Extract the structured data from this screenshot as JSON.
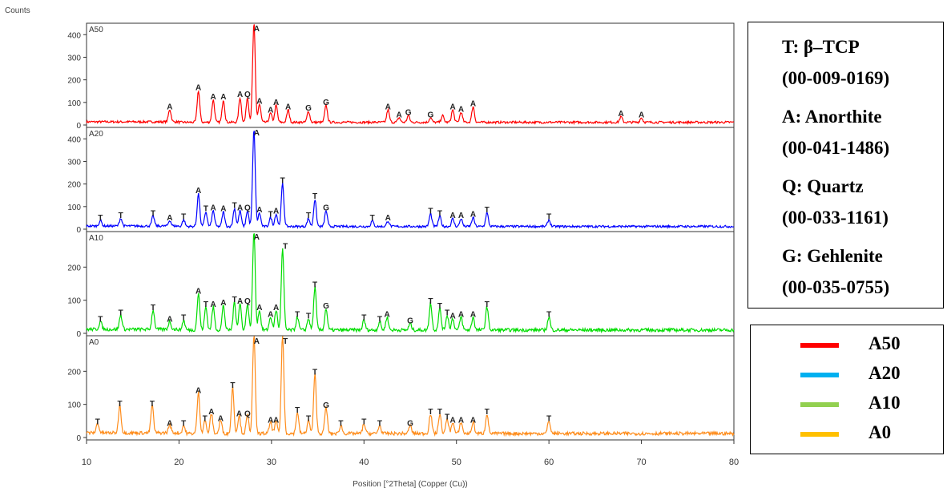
{
  "chart_data": {
    "type": "line",
    "title": "",
    "ylabel": "Counts",
    "xlabel": "Position [°2Theta] (Copper (Cu))",
    "xlim": [
      10,
      80
    ],
    "x_ticks": [
      10,
      20,
      30,
      40,
      50,
      60,
      70,
      80
    ],
    "panels": [
      {
        "name": "A50",
        "color": "#ff0000",
        "ylim": [
          0,
          440
        ],
        "y_ticks": [
          0,
          100,
          200,
          300,
          400
        ],
        "baseline": 12,
        "peaks": [
          [
            19.0,
            55
          ],
          [
            22.1,
            140
          ],
          [
            23.7,
            100
          ],
          [
            24.8,
            100
          ],
          [
            26.6,
            110
          ],
          [
            27.4,
            110
          ],
          [
            28.1,
            440
          ],
          [
            28.7,
            80
          ],
          [
            29.9,
            40
          ],
          [
            30.5,
            75
          ],
          [
            31.8,
            55
          ],
          [
            34.0,
            50
          ],
          [
            35.9,
            75
          ],
          [
            42.6,
            55
          ],
          [
            43.8,
            20
          ],
          [
            44.8,
            30
          ],
          [
            47.2,
            20
          ],
          [
            48.5,
            30
          ],
          [
            49.6,
            55
          ],
          [
            50.5,
            45
          ],
          [
            51.8,
            70
          ],
          [
            67.8,
            25
          ],
          [
            70.0,
            20
          ]
        ],
        "annotations": [
          [
            19.0,
            "A"
          ],
          [
            22.1,
            "A"
          ],
          [
            23.7,
            "A"
          ],
          [
            24.8,
            "A"
          ],
          [
            26.6,
            "A"
          ],
          [
            27.4,
            "Q"
          ],
          [
            28.4,
            "A"
          ],
          [
            28.7,
            "A"
          ],
          [
            29.9,
            "A"
          ],
          [
            30.5,
            "A"
          ],
          [
            31.8,
            "A"
          ],
          [
            34.0,
            "G"
          ],
          [
            35.9,
            "G"
          ],
          [
            42.6,
            "A"
          ],
          [
            43.8,
            "A"
          ],
          [
            44.8,
            "G"
          ],
          [
            47.2,
            "G"
          ],
          [
            49.6,
            "A"
          ],
          [
            50.5,
            "A"
          ],
          [
            51.8,
            "A"
          ],
          [
            67.8,
            "A"
          ],
          [
            70.0,
            "A"
          ]
        ]
      },
      {
        "name": "A20",
        "color": "#0000ff",
        "ylim": [
          0,
          440
        ],
        "y_ticks": [
          0,
          100,
          200,
          300,
          400
        ],
        "baseline": 12,
        "peaks": [
          [
            11.5,
            25
          ],
          [
            13.7,
            35
          ],
          [
            17.2,
            45
          ],
          [
            19.0,
            25
          ],
          [
            20.5,
            30
          ],
          [
            22.1,
            145
          ],
          [
            22.9,
            65
          ],
          [
            23.7,
            70
          ],
          [
            24.8,
            65
          ],
          [
            26.0,
            80
          ],
          [
            26.6,
            70
          ],
          [
            27.4,
            70
          ],
          [
            28.1,
            430
          ],
          [
            28.7,
            60
          ],
          [
            29.9,
            40
          ],
          [
            30.5,
            55
          ],
          [
            31.2,
            190
          ],
          [
            34.0,
            35
          ],
          [
            34.7,
            120
          ],
          [
            35.9,
            70
          ],
          [
            40.9,
            25
          ],
          [
            42.6,
            25
          ],
          [
            47.2,
            55
          ],
          [
            48.2,
            45
          ],
          [
            49.6,
            35
          ],
          [
            50.5,
            35
          ],
          [
            51.8,
            40
          ],
          [
            53.3,
            60
          ],
          [
            60.0,
            30
          ]
        ],
        "annotations": [
          [
            11.5,
            "T"
          ],
          [
            13.7,
            "T"
          ],
          [
            17.2,
            "T"
          ],
          [
            19.0,
            "A"
          ],
          [
            20.5,
            "T"
          ],
          [
            22.1,
            "A"
          ],
          [
            22.9,
            "T"
          ],
          [
            23.7,
            "A"
          ],
          [
            24.8,
            "A"
          ],
          [
            26.0,
            "T"
          ],
          [
            26.6,
            "A"
          ],
          [
            27.4,
            "Q"
          ],
          [
            28.4,
            "A"
          ],
          [
            28.7,
            "A"
          ],
          [
            29.9,
            "T"
          ],
          [
            30.5,
            "A"
          ],
          [
            31.2,
            "T"
          ],
          [
            34.0,
            "T"
          ],
          [
            34.7,
            "T"
          ],
          [
            35.9,
            "G"
          ],
          [
            40.9,
            "T"
          ],
          [
            42.6,
            "A"
          ],
          [
            47.2,
            "T"
          ],
          [
            48.2,
            "T"
          ],
          [
            49.6,
            "A"
          ],
          [
            50.5,
            "A"
          ],
          [
            51.8,
            "A"
          ],
          [
            53.3,
            "T"
          ],
          [
            60.0,
            "T"
          ]
        ]
      },
      {
        "name": "A10",
        "color": "#00dd00",
        "ylim": [
          0,
          300
        ],
        "y_ticks": [
          0,
          100,
          200
        ],
        "baseline": 10,
        "peaks": [
          [
            11.5,
            25
          ],
          [
            13.7,
            45
          ],
          [
            17.2,
            60
          ],
          [
            19.0,
            25
          ],
          [
            20.5,
            30
          ],
          [
            22.1,
            110
          ],
          [
            22.9,
            70
          ],
          [
            23.7,
            70
          ],
          [
            24.8,
            75
          ],
          [
            26.0,
            85
          ],
          [
            26.6,
            80
          ],
          [
            27.4,
            80
          ],
          [
            28.1,
            300
          ],
          [
            28.7,
            60
          ],
          [
            29.9,
            40
          ],
          [
            30.5,
            60
          ],
          [
            31.2,
            245
          ],
          [
            32.8,
            40
          ],
          [
            34.0,
            35
          ],
          [
            34.7,
            130
          ],
          [
            35.9,
            65
          ],
          [
            40.0,
            30
          ],
          [
            41.7,
            25
          ],
          [
            42.5,
            40
          ],
          [
            45.0,
            20
          ],
          [
            47.2,
            80
          ],
          [
            48.2,
            65
          ],
          [
            49.0,
            45
          ],
          [
            49.6,
            35
          ],
          [
            50.5,
            40
          ],
          [
            51.8,
            40
          ],
          [
            53.3,
            70
          ],
          [
            60.0,
            40
          ]
        ],
        "annotations": [
          [
            11.5,
            "T"
          ],
          [
            13.7,
            "T"
          ],
          [
            17.2,
            "T"
          ],
          [
            19.0,
            "A"
          ],
          [
            20.5,
            "T"
          ],
          [
            22.1,
            "A"
          ],
          [
            22.9,
            "T"
          ],
          [
            23.7,
            "A"
          ],
          [
            24.8,
            "A"
          ],
          [
            26.0,
            "T"
          ],
          [
            26.6,
            "A"
          ],
          [
            27.4,
            "Q"
          ],
          [
            28.4,
            "A"
          ],
          [
            28.7,
            "A"
          ],
          [
            29.9,
            "A"
          ],
          [
            30.5,
            "A"
          ],
          [
            31.5,
            "T"
          ],
          [
            32.8,
            "T"
          ],
          [
            34.0,
            "T"
          ],
          [
            34.7,
            "T"
          ],
          [
            35.9,
            "G"
          ],
          [
            40.0,
            "T"
          ],
          [
            41.7,
            "T"
          ],
          [
            42.5,
            "A"
          ],
          [
            45.0,
            "G"
          ],
          [
            47.2,
            "T"
          ],
          [
            48.2,
            "T"
          ],
          [
            49.0,
            "T"
          ],
          [
            49.6,
            "A"
          ],
          [
            50.5,
            "A"
          ],
          [
            51.8,
            "A"
          ],
          [
            53.3,
            "T"
          ],
          [
            60.0,
            "T"
          ]
        ]
      },
      {
        "name": "A0",
        "color": "#ff8c1a",
        "ylim": [
          0,
          300
        ],
        "y_ticks": [
          0,
          100,
          200
        ],
        "baseline": 12,
        "peaks": [
          [
            11.2,
            30
          ],
          [
            13.6,
            85
          ],
          [
            17.1,
            85
          ],
          [
            19.0,
            25
          ],
          [
            20.5,
            25
          ],
          [
            22.1,
            125
          ],
          [
            22.8,
            40
          ],
          [
            23.5,
            60
          ],
          [
            24.5,
            40
          ],
          [
            25.8,
            140
          ],
          [
            26.5,
            55
          ],
          [
            27.4,
            55
          ],
          [
            28.1,
            300
          ],
          [
            29.9,
            35
          ],
          [
            30.5,
            35
          ],
          [
            31.2,
            300
          ],
          [
            32.8,
            65
          ],
          [
            34.0,
            40
          ],
          [
            34.7,
            180
          ],
          [
            35.9,
            80
          ],
          [
            37.5,
            25
          ],
          [
            40.0,
            30
          ],
          [
            41.7,
            25
          ],
          [
            45.0,
            25
          ],
          [
            47.2,
            60
          ],
          [
            48.2,
            60
          ],
          [
            49.0,
            45
          ],
          [
            49.6,
            35
          ],
          [
            50.5,
            35
          ],
          [
            51.8,
            35
          ],
          [
            53.3,
            60
          ],
          [
            60.0,
            40
          ]
        ],
        "annotations": [
          [
            11.2,
            "T"
          ],
          [
            13.6,
            "T"
          ],
          [
            17.1,
            "T"
          ],
          [
            19.0,
            "A"
          ],
          [
            20.5,
            "T"
          ],
          [
            22.1,
            "A"
          ],
          [
            22.8,
            "T"
          ],
          [
            23.5,
            "A"
          ],
          [
            24.5,
            "A"
          ],
          [
            25.8,
            "T"
          ],
          [
            26.5,
            "A"
          ],
          [
            27.4,
            "Q"
          ],
          [
            28.4,
            "A"
          ],
          [
            29.9,
            "A"
          ],
          [
            30.5,
            "A"
          ],
          [
            31.5,
            "T"
          ],
          [
            32.8,
            "T"
          ],
          [
            34.0,
            "T"
          ],
          [
            34.7,
            "T"
          ],
          [
            35.9,
            "G"
          ],
          [
            37.5,
            "T"
          ],
          [
            40.0,
            "T"
          ],
          [
            41.7,
            "T"
          ],
          [
            45.0,
            "G"
          ],
          [
            47.2,
            "T"
          ],
          [
            48.2,
            "T"
          ],
          [
            49.0,
            "T"
          ],
          [
            49.6,
            "A"
          ],
          [
            50.5,
            "A"
          ],
          [
            51.8,
            "A"
          ],
          [
            53.3,
            "T"
          ],
          [
            60.0,
            "T"
          ]
        ]
      }
    ],
    "legend": [
      {
        "label": "A50",
        "color": "#ff0000"
      },
      {
        "label": "A20",
        "color": "#00b0f0"
      },
      {
        "label": "A10",
        "color": "#92d050"
      },
      {
        "label": "A0",
        "color": "#ffc000"
      }
    ],
    "phase_legend": [
      "T: β–TCP",
      "(00-009-0169)",
      "A: Anorthite",
      "(00-041-1486)",
      "Q: Quartz",
      "(00-033-1161)",
      "G: Gehlenite",
      "(00-035-0755)"
    ]
  }
}
